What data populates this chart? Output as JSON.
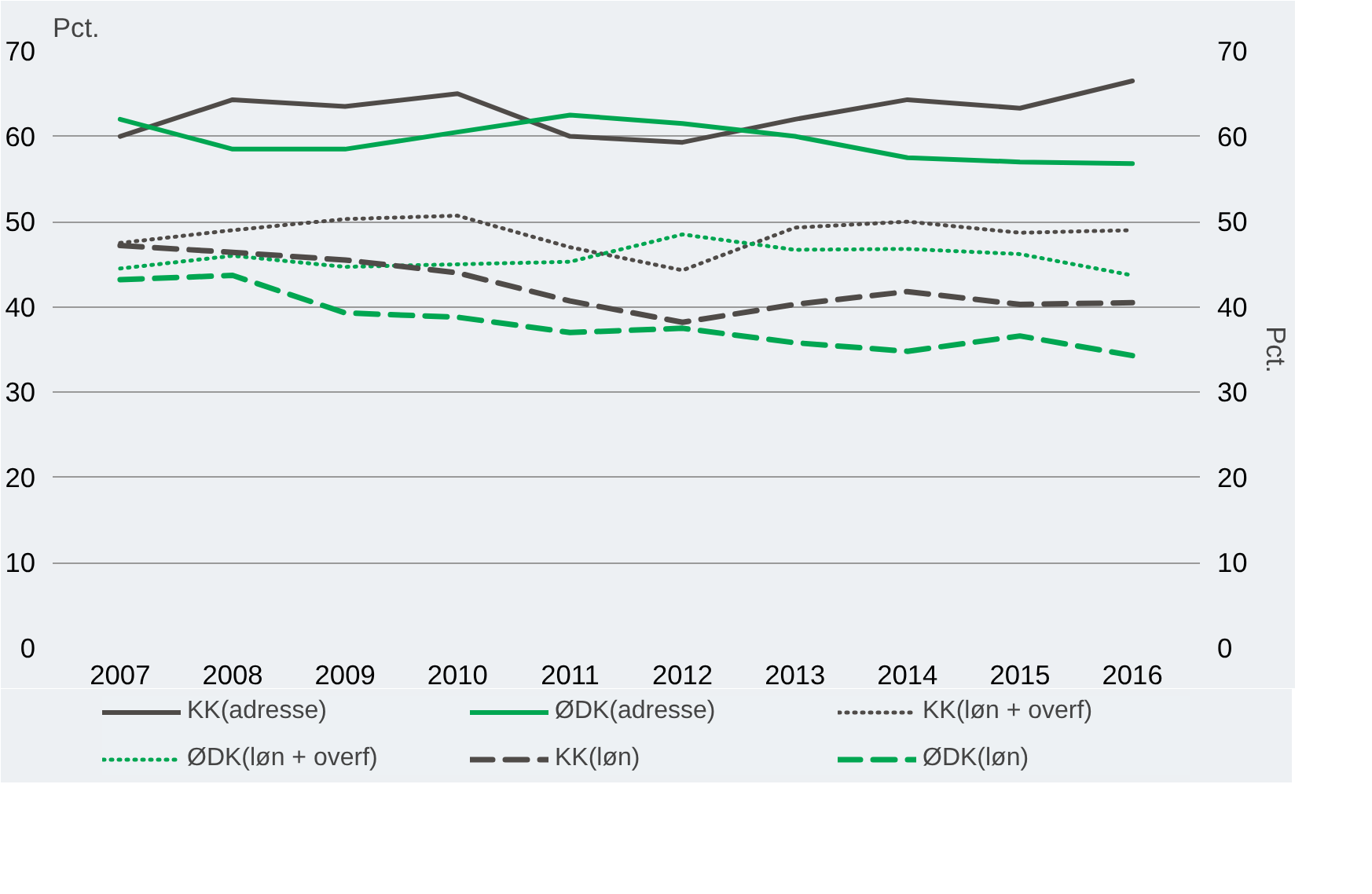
{
  "chart_data": {
    "type": "line",
    "ylabel": "Pct.",
    "y2label": "Pct.",
    "categories": [
      "2007",
      "2008",
      "2009",
      "2010",
      "2011",
      "2012",
      "2013",
      "2014",
      "2015",
      "2016"
    ],
    "ylim": [
      0,
      70
    ],
    "yticks": [
      0,
      10,
      20,
      30,
      40,
      50,
      60,
      70
    ],
    "y2lim": [
      0,
      70
    ],
    "y2ticks": [
      0,
      10,
      20,
      30,
      40,
      50,
      60,
      70
    ],
    "grid": "y",
    "legend": "bottom",
    "marker": "none",
    "series": [
      {
        "name": "KK(adresse)",
        "color": "#4f4b48",
        "line_style": "solid",
        "values": [
          60,
          64.3,
          63.5,
          65,
          60,
          59.3,
          62,
          64.3,
          63.3,
          66.5
        ]
      },
      {
        "name": "ØDK(adresse)",
        "color": "#00a651",
        "line_style": "solid",
        "values": [
          62,
          58.5,
          58.5,
          60.5,
          62.5,
          61.5,
          60,
          57.5,
          57,
          56.8
        ]
      },
      {
        "name": "KK(løn + overf)",
        "color": "#4f4b48",
        "line_style": "dotted",
        "values": [
          47.5,
          49,
          50.3,
          50.7,
          47,
          44.3,
          49.3,
          50,
          48.7,
          49
        ]
      },
      {
        "name": "ØDK(løn + overf)",
        "color": "#00a651",
        "line_style": "dotted",
        "values": [
          44.5,
          46,
          44.7,
          45,
          45.3,
          48.5,
          46.7,
          46.8,
          46.2,
          43.7
        ]
      },
      {
        "name": "KK(løn)",
        "color": "#4f4b48",
        "line_style": "dashed",
        "values": [
          47.2,
          46.4,
          45.5,
          44,
          40.7,
          38.2,
          40.3,
          41.8,
          40.3,
          40.5
        ]
      },
      {
        "name": "ØDK(løn)",
        "color": "#00a651",
        "line_style": "dashed",
        "values": [
          43.2,
          43.7,
          39.3,
          38.8,
          37,
          37.5,
          35.8,
          34.8,
          36.6,
          34.3
        ]
      }
    ]
  }
}
